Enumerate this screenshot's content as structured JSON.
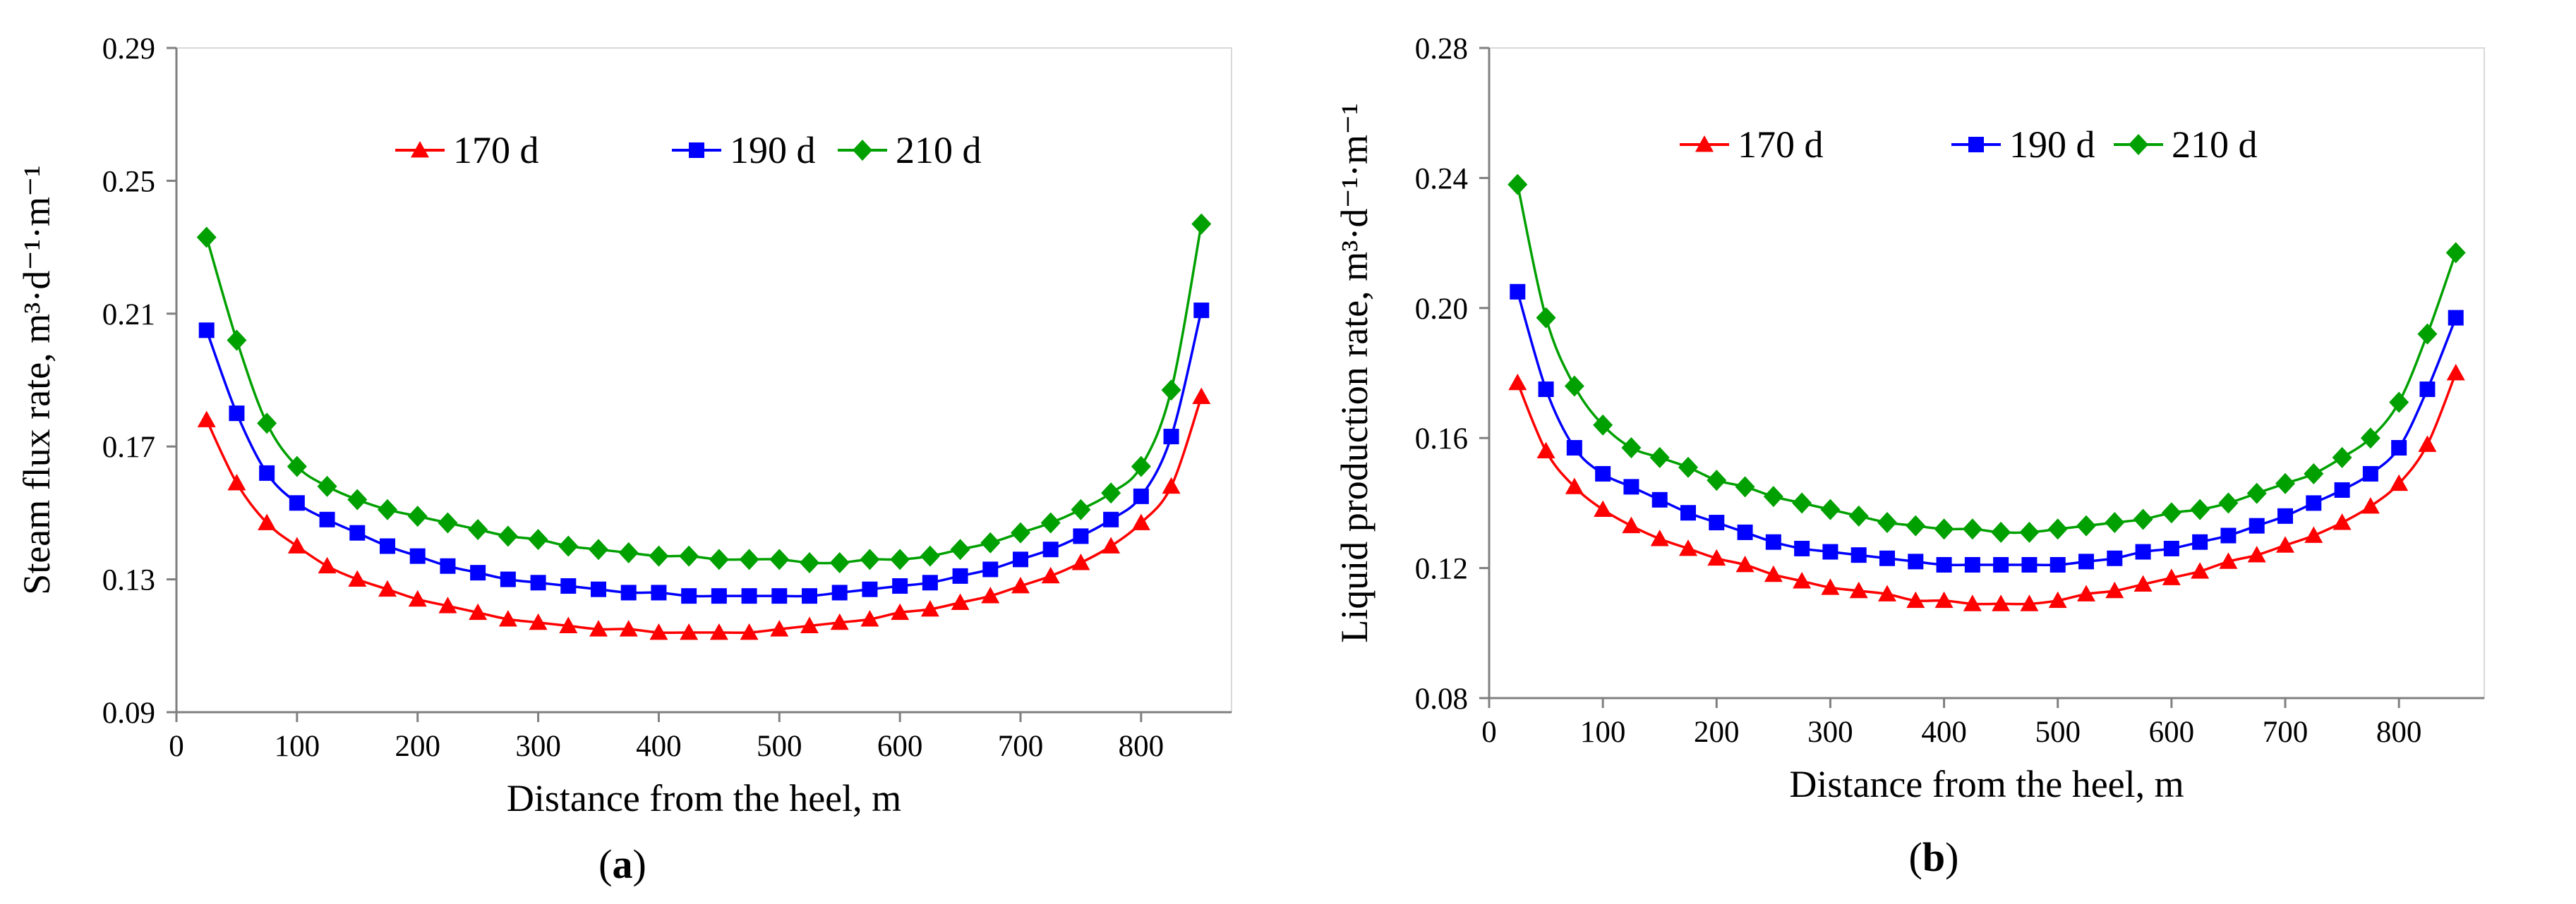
{
  "chart_data": [
    {
      "type": "line",
      "panel_label": "(a)",
      "panel_open": "(",
      "panel_letter": "a",
      "panel_close": ")",
      "xlabel": "Distance from the heel, m",
      "ylabel": "Steam flux rate, m³·d⁻¹·m⁻¹",
      "xlim": [
        0,
        875
      ],
      "ylim": [
        0.09,
        0.29
      ],
      "xticks": [
        0,
        100,
        200,
        300,
        400,
        500,
        600,
        700,
        800
      ],
      "yticks": [
        0.09,
        0.13,
        0.17,
        0.21,
        0.25,
        0.29
      ],
      "ytick_labels": [
        "0.09",
        "0.13",
        "0.17",
        "0.21",
        "0.25",
        "0.29"
      ],
      "legend_position": "top-center",
      "x": [
        25,
        50,
        75,
        100,
        125,
        150,
        175,
        200,
        225,
        250,
        275,
        300,
        325,
        350,
        375,
        400,
        425,
        450,
        475,
        500,
        525,
        550,
        575,
        600,
        625,
        650,
        675,
        700,
        725,
        750,
        775,
        800,
        825,
        850
      ],
      "series": [
        {
          "name": "170 d",
          "color": "#ff0000",
          "marker": "triangle",
          "values": [
            0.178,
            0.159,
            0.147,
            0.14,
            0.134,
            0.13,
            0.127,
            0.124,
            0.122,
            0.12,
            0.118,
            0.117,
            0.116,
            0.115,
            0.115,
            0.114,
            0.114,
            0.114,
            0.114,
            0.115,
            0.116,
            0.117,
            0.118,
            0.12,
            0.121,
            0.123,
            0.125,
            0.128,
            0.131,
            0.135,
            0.14,
            0.147,
            0.158,
            0.185
          ]
        },
        {
          "name": "190 d",
          "color": "#0000ff",
          "marker": "square",
          "values": [
            0.205,
            0.18,
            0.162,
            0.153,
            0.148,
            0.144,
            0.14,
            0.137,
            0.134,
            0.132,
            0.13,
            0.129,
            0.128,
            0.127,
            0.126,
            0.126,
            0.125,
            0.125,
            0.125,
            0.125,
            0.125,
            0.126,
            0.127,
            0.128,
            0.129,
            0.131,
            0.133,
            0.136,
            0.139,
            0.143,
            0.148,
            0.155,
            0.173,
            0.211
          ]
        },
        {
          "name": "210 d",
          "color": "#00a000",
          "marker": "diamond",
          "values": [
            0.233,
            0.202,
            0.177,
            0.164,
            0.158,
            0.154,
            0.151,
            0.149,
            0.147,
            0.145,
            0.143,
            0.142,
            0.14,
            0.139,
            0.138,
            0.137,
            0.137,
            0.136,
            0.136,
            0.136,
            0.135,
            0.135,
            0.136,
            0.136,
            0.137,
            0.139,
            0.141,
            0.144,
            0.147,
            0.151,
            0.156,
            0.164,
            0.187,
            0.237
          ]
        }
      ]
    },
    {
      "type": "line",
      "panel_label": "(b)",
      "panel_open": "(",
      "panel_letter": "b",
      "panel_close": ")",
      "xlabel": "Distance from the heel, m",
      "ylabel": "Liquid production rate, m³·d⁻¹·m⁻¹",
      "xlim": [
        0,
        875
      ],
      "ylim": [
        0.08,
        0.28
      ],
      "xticks": [
        0,
        100,
        200,
        300,
        400,
        500,
        600,
        700,
        800
      ],
      "yticks": [
        0.08,
        0.12,
        0.16,
        0.2,
        0.24,
        0.28
      ],
      "ytick_labels": [
        "0.08",
        "0.12",
        "0.16",
        "0.20",
        "0.24",
        "0.28"
      ],
      "legend_position": "top-center",
      "x": [
        25,
        50,
        75,
        100,
        125,
        150,
        175,
        200,
        225,
        250,
        275,
        300,
        325,
        350,
        375,
        400,
        425,
        450,
        475,
        500,
        525,
        550,
        575,
        600,
        625,
        650,
        675,
        700,
        725,
        750,
        775,
        800,
        825,
        850
      ],
      "series": [
        {
          "name": "170 d",
          "color": "#ff0000",
          "marker": "triangle",
          "values": [
            0.177,
            0.156,
            0.145,
            0.138,
            0.133,
            0.129,
            0.126,
            0.123,
            0.121,
            0.118,
            0.116,
            0.114,
            0.113,
            0.112,
            0.11,
            0.11,
            0.109,
            0.109,
            0.109,
            0.11,
            0.112,
            0.113,
            0.115,
            0.117,
            0.119,
            0.122,
            0.124,
            0.127,
            0.13,
            0.134,
            0.139,
            0.146,
            0.158,
            0.18
          ]
        },
        {
          "name": "190 d",
          "color": "#0000ff",
          "marker": "square",
          "values": [
            0.205,
            0.175,
            0.157,
            0.149,
            0.145,
            0.141,
            0.137,
            0.134,
            0.131,
            0.128,
            0.126,
            0.125,
            0.124,
            0.123,
            0.122,
            0.121,
            0.121,
            0.121,
            0.121,
            0.121,
            0.122,
            0.123,
            0.125,
            0.126,
            0.128,
            0.13,
            0.133,
            0.136,
            0.14,
            0.144,
            0.149,
            0.157,
            0.175,
            0.197
          ]
        },
        {
          "name": "210 d",
          "color": "#00a000",
          "marker": "diamond",
          "values": [
            0.238,
            0.197,
            0.176,
            0.164,
            0.157,
            0.154,
            0.151,
            0.147,
            0.145,
            0.142,
            0.14,
            0.138,
            0.136,
            0.134,
            0.133,
            0.132,
            0.132,
            0.131,
            0.131,
            0.132,
            0.133,
            0.134,
            0.135,
            0.137,
            0.138,
            0.14,
            0.143,
            0.146,
            0.149,
            0.154,
            0.16,
            0.171,
            0.192,
            0.217
          ]
        }
      ]
    }
  ]
}
